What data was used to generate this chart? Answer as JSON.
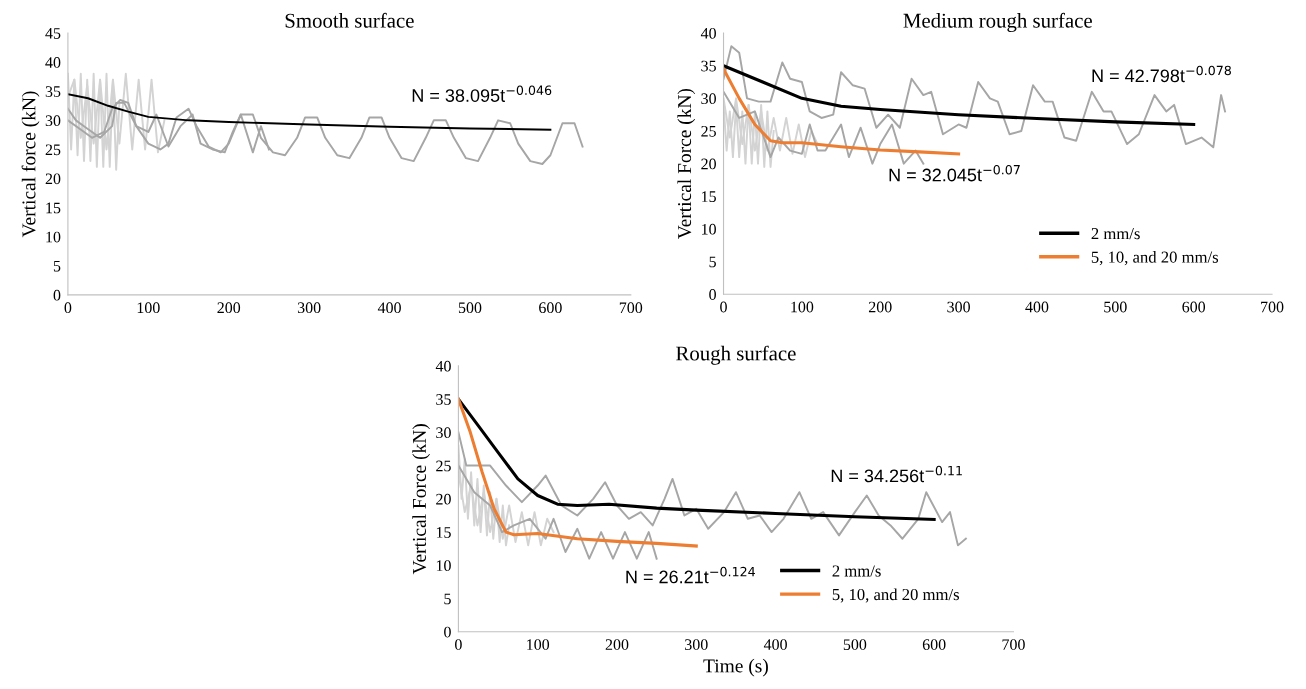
{
  "chart_data": [
    {
      "type": "line",
      "title": "Smooth surface",
      "ylabel": "Vertical force (kN)",
      "xlim": [
        0,
        700
      ],
      "xticks": [
        0,
        100,
        200,
        300,
        400,
        500,
        600,
        700
      ],
      "ylim": [
        0,
        45
      ],
      "yticks": [
        0,
        5,
        10,
        15,
        20,
        25,
        30,
        35,
        40,
        45
      ],
      "legend": false,
      "grid": false,
      "marker": "none",
      "line_style": "solid",
      "annotations": [
        "N = 38.095t$^{−0.046}$"
      ],
      "series": [
        {
          "color": "#d3d3d3",
          "x": [
            0,
            4,
            8,
            12,
            16,
            20,
            24,
            28,
            32,
            36,
            40,
            44,
            48,
            52,
            56,
            60,
            64
          ],
          "values": [
            38,
            25,
            37,
            24,
            38,
            23,
            37,
            23,
            38,
            22,
            37,
            22,
            38,
            22,
            37,
            21.5,
            33
          ]
        },
        {
          "color": "#d3d3d3",
          "x": [
            0,
            8,
            16,
            24,
            32,
            40,
            48,
            56,
            64,
            72,
            80,
            88,
            96,
            104,
            112,
            120
          ],
          "values": [
            34,
            37,
            27,
            36,
            26,
            37,
            25,
            37,
            26,
            38,
            25,
            37,
            25,
            37,
            24.5,
            30
          ]
        },
        {
          "color": "#a6a6a6",
          "x": [
            0,
            10,
            20,
            40,
            55,
            60,
            70,
            85,
            100,
            110,
            125,
            140,
            155,
            165,
            180,
            195,
            205,
            215,
            230,
            240,
            250
          ],
          "values": [
            32,
            30,
            29,
            27,
            29,
            33,
            33,
            29,
            28,
            31,
            25.5,
            29,
            31,
            26,
            25,
            24.5,
            28,
            31,
            24.5,
            29,
            25
          ]
        },
        {
          "color": "#a6a6a6",
          "x": [
            0,
            15,
            30,
            45,
            55,
            65,
            75,
            85,
            100,
            115,
            125,
            135,
            150,
            160,
            175,
            190,
            200,
            215,
            230,
            240,
            255,
            270,
            285,
            295,
            310,
            320,
            335,
            350,
            365,
            375,
            390,
            400,
            415,
            430,
            445,
            455,
            470,
            480,
            495,
            510,
            525,
            535,
            550,
            560,
            575,
            590,
            600,
            615,
            630,
            640
          ],
          "values": [
            30,
            28.5,
            27,
            28,
            32,
            33.5,
            33,
            29,
            26,
            25,
            26,
            30.5,
            32,
            29,
            25.5,
            24.5,
            26,
            31,
            31,
            27,
            24.5,
            24,
            27,
            30.5,
            30.5,
            27,
            24,
            23.5,
            27,
            30.5,
            30.5,
            27,
            23.5,
            23,
            27,
            30,
            30,
            27,
            23.5,
            23,
            27,
            30,
            29.5,
            26,
            23,
            22.5,
            24,
            29.5,
            29.5,
            25.5
          ]
        },
        {
          "color": "#000000",
          "x": [
            0,
            25,
            50,
            75,
            100,
            150,
            200,
            300,
            400,
            500,
            600
          ],
          "values": [
            34.5,
            33.8,
            32.5,
            31.5,
            30.6,
            30,
            29.7,
            29.3,
            28.9,
            28.6,
            28.4
          ]
        }
      ]
    },
    {
      "type": "line",
      "title": "Medium rough surface",
      "ylabel": "Vertical Force (kN)",
      "xlim": [
        0,
        700
      ],
      "xticks": [
        0,
        100,
        200,
        300,
        400,
        500,
        600,
        700
      ],
      "ylim": [
        0,
        40
      ],
      "yticks": [
        0,
        5,
        10,
        15,
        20,
        25,
        30,
        35,
        40
      ],
      "legend": "bottom right",
      "grid": false,
      "marker": "none",
      "line_style": "solid",
      "annotations": [
        "N = 42.798t$^{−0.078}$",
        "N = 32.045t$^{−0.07}$"
      ],
      "series": [
        {
          "color": "#d3d3d3",
          "x": [
            0,
            4,
            8,
            12,
            16,
            20,
            24,
            28,
            32,
            36,
            40,
            44,
            48,
            52,
            56,
            60,
            64
          ],
          "values": [
            29,
            22,
            28,
            21,
            29,
            21,
            28,
            20,
            29,
            20,
            28,
            20,
            29,
            19.5,
            28,
            19.5,
            25
          ]
        },
        {
          "color": "#d3d3d3",
          "x": [
            0,
            8,
            16,
            24,
            32,
            40,
            48,
            56,
            64,
            72,
            80,
            88,
            96,
            104,
            112,
            120
          ],
          "values": [
            30,
            24,
            30,
            23,
            29,
            22,
            28,
            22,
            27,
            22,
            27,
            21.5,
            26,
            21,
            25,
            23
          ]
        },
        {
          "color": "#a6a6a6",
          "x": [
            0,
            20,
            40,
            60,
            70,
            85,
            100,
            110,
            120,
            130,
            150,
            160,
            175,
            190,
            200,
            215,
            230,
            245,
            255
          ],
          "values": [
            31,
            27,
            28,
            21,
            24,
            22,
            21.5,
            26,
            22,
            22,
            26,
            21,
            25.5,
            20,
            23,
            26,
            20,
            22,
            20
          ]
        },
        {
          "color": "#a6a6a6",
          "x": [
            0,
            10,
            20,
            30,
            45,
            60,
            75,
            85,
            100,
            110,
            125,
            140,
            150,
            165,
            180,
            195,
            210,
            225,
            240,
            255,
            265,
            280,
            300,
            310,
            325,
            340,
            350,
            365,
            380,
            395,
            410,
            420,
            435,
            450,
            470,
            485,
            495,
            515,
            530,
            550,
            565,
            575,
            590,
            610,
            625,
            635,
            640
          ],
          "values": [
            33,
            38,
            37,
            30,
            29.5,
            29.5,
            35.5,
            33,
            32.5,
            28,
            27,
            27.5,
            34,
            32,
            31.5,
            25.5,
            27.5,
            25.5,
            33,
            30.5,
            31,
            24.5,
            26,
            25.5,
            32.5,
            30,
            29.5,
            24.5,
            25,
            32,
            29.5,
            29.5,
            24,
            23.5,
            31,
            28,
            28,
            23,
            24.5,
            30.5,
            28,
            29,
            23,
            24,
            22.5,
            30.5,
            28
          ]
        },
        {
          "name": "2 mm/s",
          "color": "#000000",
          "x": [
            0,
            50,
            100,
            150,
            200,
            300,
            400,
            500,
            600
          ],
          "values": [
            35,
            32.5,
            30,
            28.8,
            28.3,
            27.5,
            26.9,
            26.4,
            26
          ]
        },
        {
          "name": "5, 10, and 20 mm/s",
          "color": "#ed7d31",
          "x": [
            0,
            20,
            40,
            60,
            75,
            100,
            150,
            200,
            250,
            300
          ],
          "values": [
            34.5,
            30,
            26,
            23.5,
            23.2,
            23.2,
            22.6,
            22.1,
            21.8,
            21.5
          ]
        }
      ]
    },
    {
      "type": "line",
      "title": "Rough surface",
      "xlabel": "Time (s)",
      "ylabel": "Vertical Force (kN)",
      "xlim": [
        0,
        700
      ],
      "xticks": [
        0,
        100,
        200,
        300,
        400,
        500,
        600,
        700
      ],
      "ylim": [
        0,
        40
      ],
      "yticks": [
        0,
        5,
        10,
        15,
        20,
        25,
        30,
        35,
        40
      ],
      "legend": "bottom right",
      "grid": false,
      "marker": "none",
      "line_style": "solid",
      "annotations": [
        "N = 34.256t$^{−0.11}$",
        "N = 26.21t$^{−0.124}$"
      ],
      "series": [
        {
          "color": "#d3d3d3",
          "x": [
            0,
            4,
            8,
            12,
            16,
            20,
            24,
            28,
            32,
            36,
            40,
            44,
            48,
            52,
            56,
            60,
            64
          ],
          "values": [
            28,
            20,
            26,
            17,
            24,
            16,
            23,
            15,
            22,
            14.5,
            21,
            14,
            20,
            13.5,
            19,
            13,
            16
          ]
        },
        {
          "color": "#d3d3d3",
          "x": [
            0,
            8,
            16,
            24,
            32,
            40,
            48,
            56,
            64,
            72,
            80,
            88,
            96,
            104,
            112,
            120
          ],
          "values": [
            24,
            18,
            22,
            16,
            21,
            15,
            20,
            14,
            19,
            13.5,
            18,
            13,
            18,
            13,
            17,
            15
          ]
        },
        {
          "color": "#a6a6a6",
          "x": [
            0,
            20,
            40,
            55,
            70,
            90,
            110,
            120,
            135,
            150,
            165,
            180,
            195,
            210,
            225,
            240,
            250
          ],
          "values": [
            25,
            21,
            19,
            15,
            16,
            17,
            14,
            17,
            12,
            15.5,
            11,
            15,
            11,
            15,
            11,
            15,
            11
          ]
        },
        {
          "color": "#a6a6a6",
          "x": [
            0,
            10,
            40,
            60,
            80,
            100,
            110,
            130,
            150,
            170,
            185,
            200,
            215,
            230,
            245,
            260,
            270,
            285,
            300,
            315,
            335,
            350,
            365,
            380,
            395,
            410,
            430,
            445,
            460,
            480,
            500,
            515,
            530,
            545,
            560,
            580,
            590,
            610,
            620,
            630,
            640
          ],
          "values": [
            30,
            25,
            25,
            22,
            19.5,
            22,
            23.5,
            19,
            17.5,
            20,
            22.5,
            19,
            17,
            18,
            16,
            20,
            23,
            17.5,
            18.5,
            15.5,
            18,
            21,
            17,
            17.5,
            15,
            17,
            21,
            17,
            18,
            14.5,
            18,
            20.5,
            17.5,
            16,
            14,
            17,
            21,
            16.5,
            18,
            13,
            14
          ]
        },
        {
          "name": "2 mm/s",
          "color": "#000000",
          "x": [
            0,
            25,
            50,
            75,
            100,
            125,
            150,
            190,
            250,
            300,
            400,
            500,
            600
          ],
          "values": [
            35,
            31,
            27,
            23,
            20.5,
            19.2,
            19,
            19.2,
            18.6,
            18.3,
            17.8,
            17.3,
            16.9
          ]
        },
        {
          "name": "5, 10, and 20 mm/s",
          "color": "#ed7d31",
          "x": [
            0,
            15,
            30,
            45,
            60,
            70,
            100,
            150,
            200,
            250,
            300
          ],
          "values": [
            35,
            30,
            24,
            18.5,
            15,
            14.6,
            14.8,
            14,
            13.6,
            13.3,
            12.9
          ]
        }
      ]
    }
  ]
}
